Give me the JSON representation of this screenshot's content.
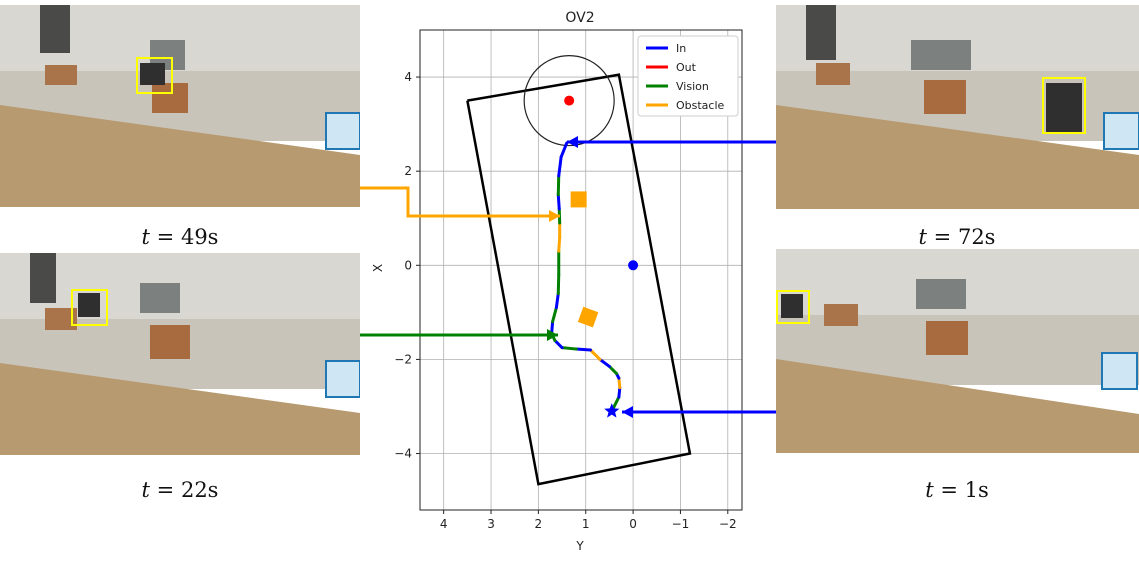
{
  "captions": {
    "top_left": {
      "prefix": "t = ",
      "value": "49s"
    },
    "bottom_left": {
      "prefix": "t = ",
      "value": "22s"
    },
    "top_right": {
      "prefix": "t = ",
      "value": "72s"
    },
    "bottom_right": {
      "prefix": "t = ",
      "value": "1s"
    }
  },
  "colors": {
    "in": "#0000ff",
    "out": "#ff0000",
    "vision": "#008000",
    "obstacle": "#ffa500",
    "robot_box": "#ffff00",
    "target_box": "#1f77b4",
    "boundary": "#000000"
  },
  "chart_data": {
    "type": "line",
    "title": "OV2",
    "xlabel": "Y",
    "ylabel": "X",
    "xlim": [
      4.5,
      -2.3
    ],
    "ylim": [
      -5.2,
      5.0
    ],
    "x_inverted": true,
    "grid": true,
    "legend_placement": "top-right",
    "x_ticks": [
      "4",
      "3",
      "2",
      "1",
      "0",
      "−1",
      "−2"
    ],
    "y_ticks": [
      "4",
      "2",
      "0",
      "−2",
      "−4"
    ],
    "series": [
      {
        "name": "In",
        "color": "#0000ff"
      },
      {
        "name": "Out",
        "color": "#ff0000"
      },
      {
        "name": "Vision",
        "color": "#008000"
      },
      {
        "name": "Obstacle",
        "color": "#ffa500"
      }
    ],
    "boundary": [
      [
        3.5,
        3.5
      ],
      [
        0.3,
        4.05
      ],
      [
        -1.2,
        -4.0
      ],
      [
        2.0,
        -4.65
      ],
      [
        3.5,
        3.5
      ]
    ],
    "goal_circle": {
      "center": [
        1.35,
        3.5
      ],
      "radius": 0.95
    },
    "goal_point": [
      1.35,
      3.5
    ],
    "origin_point": [
      0.0,
      0.0
    ],
    "start_point": [
      0.45,
      -3.1
    ],
    "obstacles": [
      [
        1.15,
        1.4
      ],
      [
        0.95,
        -1.1
      ]
    ],
    "trajectory": [
      {
        "y": 0.45,
        "x": -3.1,
        "mode": "In"
      },
      {
        "y": 0.3,
        "x": -2.8,
        "mode": "Vision"
      },
      {
        "y": 0.28,
        "x": -2.6,
        "mode": "In"
      },
      {
        "y": 0.3,
        "x": -2.4,
        "mode": "Obstacle"
      },
      {
        "y": 0.35,
        "x": -2.3,
        "mode": "In"
      },
      {
        "y": 0.5,
        "x": -2.15,
        "mode": "Vision"
      },
      {
        "y": 0.7,
        "x": -2.0,
        "mode": "In"
      },
      {
        "y": 0.9,
        "x": -1.8,
        "mode": "Obstacle"
      },
      {
        "y": 1.2,
        "x": -1.78,
        "mode": "In"
      },
      {
        "y": 1.5,
        "x": -1.75,
        "mode": "Vision"
      },
      {
        "y": 1.65,
        "x": -1.6,
        "mode": "In"
      },
      {
        "y": 1.72,
        "x": -1.45,
        "mode": "Vision"
      },
      {
        "y": 1.7,
        "x": -1.2,
        "mode": "In"
      },
      {
        "y": 1.62,
        "x": -0.9,
        "mode": "Vision"
      },
      {
        "y": 1.58,
        "x": -0.6,
        "mode": "In"
      },
      {
        "y": 1.57,
        "x": -0.2,
        "mode": "Vision"
      },
      {
        "y": 1.57,
        "x": 0.3,
        "mode": "Vision"
      },
      {
        "y": 1.55,
        "x": 0.6,
        "mode": "Obstacle"
      },
      {
        "y": 1.55,
        "x": 0.9,
        "mode": "Obstacle"
      },
      {
        "y": 1.56,
        "x": 1.2,
        "mode": "Vision"
      },
      {
        "y": 1.58,
        "x": 1.5,
        "mode": "In"
      },
      {
        "y": 1.57,
        "x": 1.9,
        "mode": "Vision"
      },
      {
        "y": 1.52,
        "x": 2.3,
        "mode": "In"
      },
      {
        "y": 1.4,
        "x": 2.6,
        "mode": "In"
      }
    ]
  }
}
